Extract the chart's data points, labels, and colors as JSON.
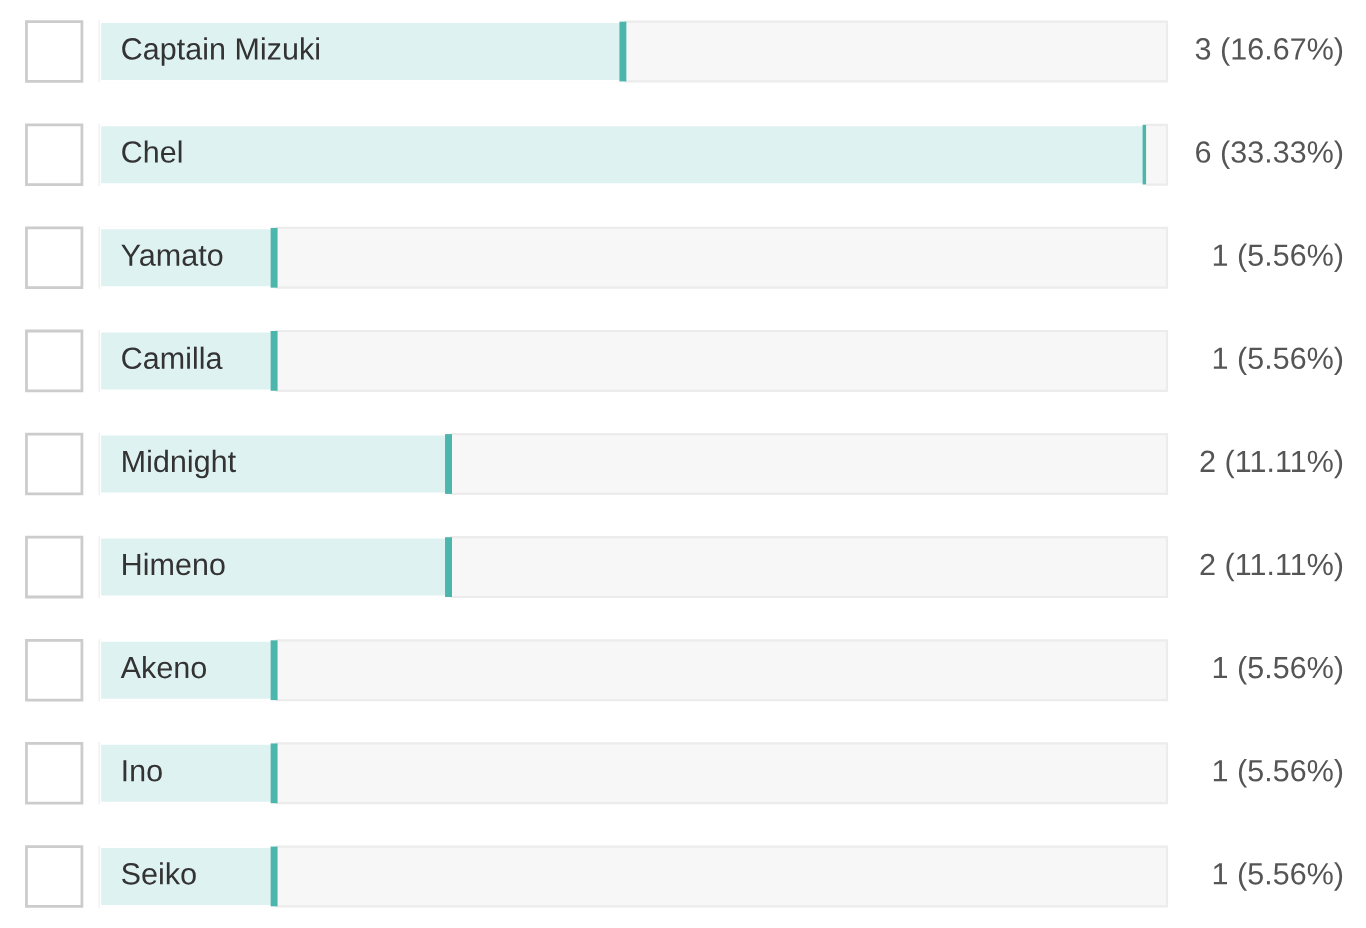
{
  "chart_data": {
    "type": "bar",
    "orientation": "horizontal",
    "categories": [
      "Captain Mizuki",
      "Chel",
      "Yamato",
      "Camilla",
      "Midnight",
      "Himeno",
      "Akeno",
      "Ino",
      "Seiko"
    ],
    "values": [
      3,
      6,
      1,
      1,
      2,
      2,
      1,
      1,
      1
    ],
    "value_labels": [
      "3 (16.67%)",
      "6 (33.33%)",
      "1 (5.56%)",
      "1 (5.56%)",
      "2 (11.11%)",
      "2 (11.11%)",
      "1 (5.56%)",
      "1 (5.56%)",
      "1 (5.56%)"
    ],
    "color": "#def2f1",
    "xlim": [
      0,
      6
    ]
  }
}
